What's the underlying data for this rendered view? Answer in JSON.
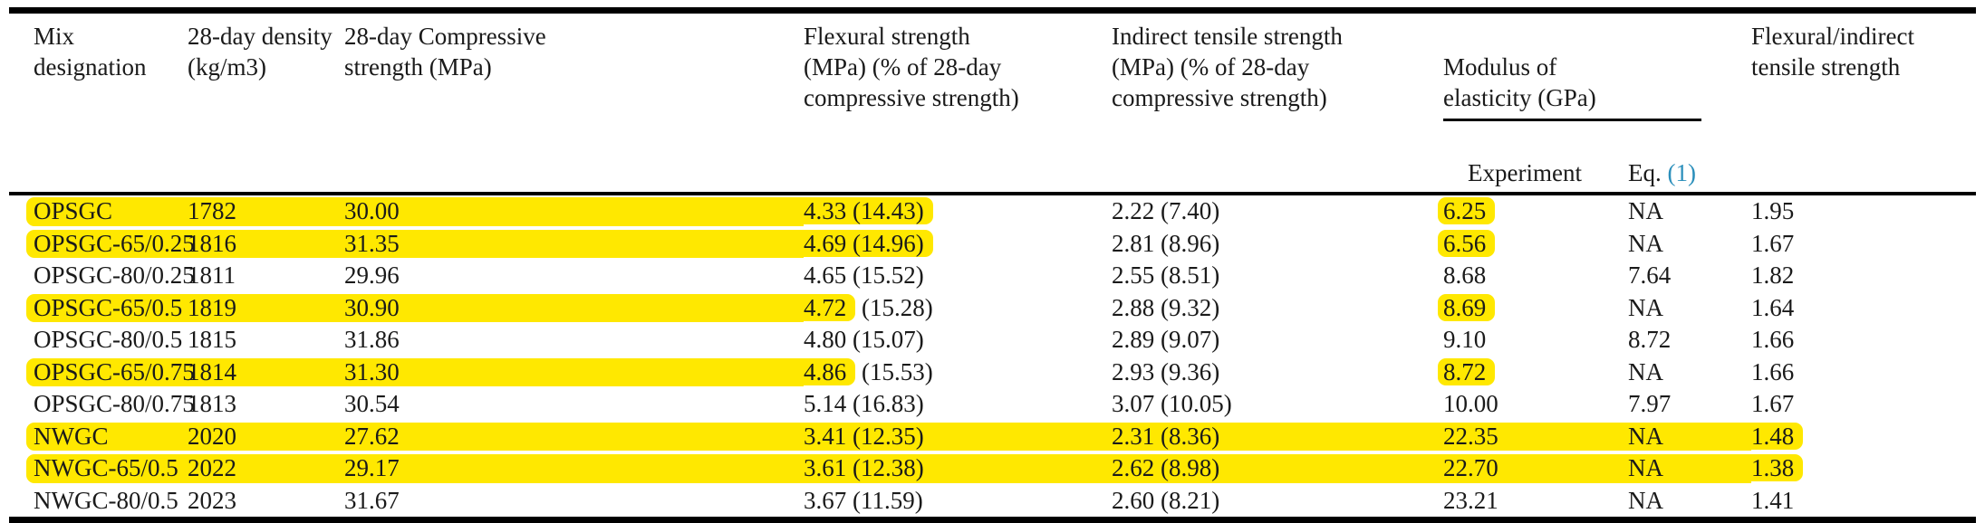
{
  "colors": {
    "highlight_yellow": "#ffe800",
    "reference_link_blue": "#2b8fbb",
    "rule_black": "#000000",
    "text": "#1a1a1a"
  },
  "table": {
    "headers": {
      "mix": "Mix designation",
      "density": "28-day density\n(kg/m3)",
      "compressive": "28-day Compressive\nstrength (MPa)",
      "flexural": "Flexural strength\n(MPa) (% of 28-day\ncompressive strength)",
      "indirect": "Indirect tensile strength\n(MPa) (% of 28-day\ncompressive strength)",
      "modulus_group": "Modulus of\nelasticity (GPa)",
      "experiment": "Experiment",
      "eq_prefix": "Eq. ",
      "eq_ref": "(1)",
      "ratio": "Flexural/indirect\ntensile strength"
    },
    "col_keys": [
      "mix",
      "density",
      "compressive",
      "flexural",
      "indirect",
      "experiment",
      "eq",
      "ratio"
    ],
    "rows": [
      {
        "cells": [
          {
            "t": "OPSGC",
            "h": "band"
          },
          {
            "t": "1782",
            "h": "band"
          },
          {
            "t": "30.00",
            "h": "band"
          },
          {
            "t": "4.33 (14.43)",
            "h": "end"
          },
          {
            "t": "2.22 (7.40)",
            "h": "none"
          },
          {
            "t": "6.25",
            "h": "solo"
          },
          {
            "t": "NA",
            "h": "none"
          },
          {
            "t": "1.95",
            "h": "none"
          }
        ]
      },
      {
        "cells": [
          {
            "t": "OPSGC-65/0.25",
            "h": "band"
          },
          {
            "t": "1816",
            "h": "band"
          },
          {
            "t": "31.35",
            "h": "band"
          },
          {
            "t": "4.69 (14.96)",
            "h": "end"
          },
          {
            "t": "2.81 (8.96)",
            "h": "none"
          },
          {
            "t": "6.56",
            "h": "solo"
          },
          {
            "t": "NA",
            "h": "none"
          },
          {
            "t": "1.67",
            "h": "none"
          }
        ]
      },
      {
        "cells": [
          {
            "t": "OPSGC-80/0.25",
            "h": "none"
          },
          {
            "t": "1811",
            "h": "none"
          },
          {
            "t": "29.96",
            "h": "none"
          },
          {
            "t": "4.65 (15.52)",
            "h": "none"
          },
          {
            "t": "2.55 (8.51)",
            "h": "none"
          },
          {
            "t": "8.68",
            "h": "none"
          },
          {
            "t": "7.64",
            "h": "none"
          },
          {
            "t": "1.82",
            "h": "none"
          }
        ]
      },
      {
        "cells": [
          {
            "t": "OPSGC-65/0.5",
            "h": "band"
          },
          {
            "t": "1819",
            "h": "band"
          },
          {
            "t": "30.90",
            "h": "band"
          },
          {
            "t": "4.72 (15.28)",
            "h": "prefix",
            "p": "4.72",
            "r": " (15.28)"
          },
          {
            "t": "2.88 (9.32)",
            "h": "none"
          },
          {
            "t": "8.69",
            "h": "solo"
          },
          {
            "t": "NA",
            "h": "none"
          },
          {
            "t": "1.64",
            "h": "none"
          }
        ]
      },
      {
        "cells": [
          {
            "t": "OPSGC-80/0.5",
            "h": "none"
          },
          {
            "t": "1815",
            "h": "none"
          },
          {
            "t": "31.86",
            "h": "none"
          },
          {
            "t": "4.80 (15.07)",
            "h": "none"
          },
          {
            "t": "2.89 (9.07)",
            "h": "none"
          },
          {
            "t": "9.10",
            "h": "none"
          },
          {
            "t": "8.72",
            "h": "none"
          },
          {
            "t": "1.66",
            "h": "none"
          }
        ]
      },
      {
        "cells": [
          {
            "t": "OPSGC-65/0.75",
            "h": "band"
          },
          {
            "t": "1814",
            "h": "band"
          },
          {
            "t": "31.30",
            "h": "band"
          },
          {
            "t": "4.86 (15.53)",
            "h": "prefix",
            "p": "4.86",
            "r": " (15.53)"
          },
          {
            "t": "2.93 (9.36)",
            "h": "none"
          },
          {
            "t": "8.72",
            "h": "solo"
          },
          {
            "t": "NA",
            "h": "none"
          },
          {
            "t": "1.66",
            "h": "none"
          }
        ]
      },
      {
        "cells": [
          {
            "t": "OPSGC-80/0.75",
            "h": "none"
          },
          {
            "t": "1813",
            "h": "none"
          },
          {
            "t": "30.54",
            "h": "none"
          },
          {
            "t": "5.14 (16.83)",
            "h": "none"
          },
          {
            "t": "3.07 (10.05)",
            "h": "none"
          },
          {
            "t": "10.00",
            "h": "none"
          },
          {
            "t": "7.97",
            "h": "none"
          },
          {
            "t": "1.67",
            "h": "none"
          }
        ]
      },
      {
        "cells": [
          {
            "t": "NWGC",
            "h": "band"
          },
          {
            "t": "2020",
            "h": "band"
          },
          {
            "t": "27.62",
            "h": "band"
          },
          {
            "t": "3.41 (12.35)",
            "h": "band"
          },
          {
            "t": "2.31 (8.36)",
            "h": "band"
          },
          {
            "t": "22.35",
            "h": "band"
          },
          {
            "t": "NA",
            "h": "band"
          },
          {
            "t": "1.48",
            "h": "end"
          }
        ]
      },
      {
        "cells": [
          {
            "t": "NWGC-65/0.5",
            "h": "band"
          },
          {
            "t": "2022",
            "h": "band"
          },
          {
            "t": "29.17",
            "h": "band"
          },
          {
            "t": "3.61 (12.38)",
            "h": "band"
          },
          {
            "t": "2.62 (8.98)",
            "h": "band"
          },
          {
            "t": "22.70",
            "h": "band"
          },
          {
            "t": "NA",
            "h": "band"
          },
          {
            "t": "1.38",
            "h": "end"
          }
        ]
      },
      {
        "cells": [
          {
            "t": "NWGC-80/0.5",
            "h": "none"
          },
          {
            "t": "2023",
            "h": "none"
          },
          {
            "t": "31.67",
            "h": "none"
          },
          {
            "t": "3.67 (11.59)",
            "h": "none"
          },
          {
            "t": "2.60 (8.21)",
            "h": "none"
          },
          {
            "t": "23.21",
            "h": "none"
          },
          {
            "t": "NA",
            "h": "none"
          },
          {
            "t": "1.41",
            "h": "none"
          }
        ]
      }
    ]
  }
}
